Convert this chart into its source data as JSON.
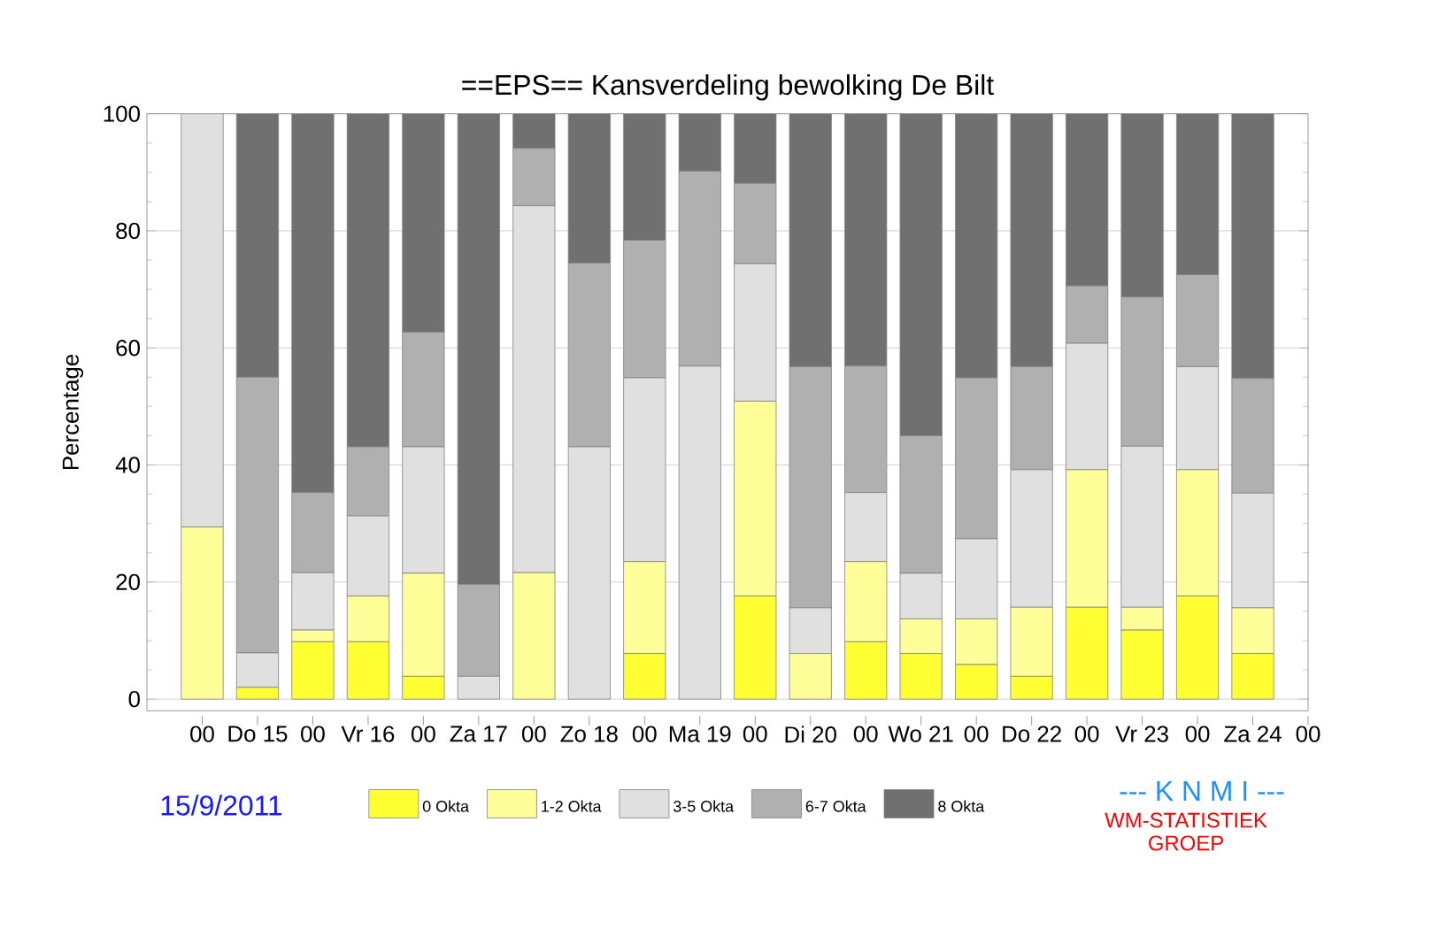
{
  "chart_data": {
    "type": "bar",
    "stacked": true,
    "title": "==EPS==   Kansverdeling bewolking De Bilt",
    "ylabel": "Percentage",
    "x": [
      "2011-09-15T00:00",
      "2011-09-15T12:00",
      "2011-09-16T00:00",
      "2011-09-16T12:00",
      "2011-09-17T00:00",
      "2011-09-17T12:00",
      "2011-09-18T00:00",
      "2011-09-18T12:00",
      "2011-09-19T00:00",
      "2011-09-19T12:00",
      "2011-09-20T00:00",
      "2011-09-20T12:00",
      "2011-09-21T00:00",
      "2011-09-21T12:00",
      "2011-09-22T00:00",
      "2011-09-22T12:00",
      "2011-09-23T00:00",
      "2011-09-23T12:00",
      "2011-09-24T00:00",
      "2011-09-24T12:00"
    ],
    "series": [
      {
        "name": "0 Okta",
        "color": "#ffff33",
        "values": [
          0,
          2.0,
          9.8,
          9.8,
          3.9,
          0,
          0,
          0,
          7.8,
          0,
          17.6,
          0,
          9.8,
          7.8,
          5.9,
          3.9,
          15.7,
          11.8,
          17.6,
          7.8
        ]
      },
      {
        "name": "1-2 Okta",
        "color": "#ffff99",
        "values": [
          29.4,
          0,
          2.0,
          7.8,
          17.6,
          0,
          21.6,
          0,
          15.7,
          0,
          33.3,
          7.8,
          13.7,
          5.9,
          7.8,
          11.8,
          23.5,
          3.9,
          21.6,
          7.8
        ]
      },
      {
        "name": "3-5 Okta",
        "color": "#e0e0e0",
        "values": [
          70.6,
          5.9,
          9.8,
          13.7,
          21.6,
          3.9,
          62.7,
          43.1,
          31.4,
          56.9,
          23.5,
          7.8,
          11.8,
          7.8,
          13.7,
          23.5,
          21.6,
          27.5,
          17.6,
          19.6
        ]
      },
      {
        "name": "6-7 Okta",
        "color": "#b0b0b0",
        "values": [
          0,
          47.1,
          13.7,
          11.8,
          19.6,
          15.7,
          9.8,
          31.4,
          23.5,
          33.3,
          13.7,
          41.2,
          21.6,
          23.5,
          27.5,
          17.6,
          9.8,
          25.5,
          15.7,
          19.6
        ]
      },
      {
        "name": "8 Okta",
        "color": "#707070",
        "values": [
          0,
          45.0,
          64.7,
          56.9,
          37.3,
          80.4,
          5.9,
          25.5,
          21.6,
          9.8,
          11.9,
          43.2,
          43.1,
          55.0,
          45.1,
          43.2,
          29.4,
          31.3,
          27.5,
          45.2
        ]
      }
    ],
    "xlim": [
      "2011-09-14T12:00",
      "2011-09-25T00:00"
    ],
    "xticks": [
      {
        "value": "2011-09-15T00:00",
        "label": "00"
      },
      {
        "value": "2011-09-15T12:00",
        "label": "Do 15"
      },
      {
        "value": "2011-09-16T00:00",
        "label": "00"
      },
      {
        "value": "2011-09-16T12:00",
        "label": "Vr 16"
      },
      {
        "value": "2011-09-17T00:00",
        "label": "00"
      },
      {
        "value": "2011-09-17T12:00",
        "label": "Za 17"
      },
      {
        "value": "2011-09-18T00:00",
        "label": "00"
      },
      {
        "value": "2011-09-18T12:00",
        "label": "Zo 18"
      },
      {
        "value": "2011-09-19T00:00",
        "label": "00"
      },
      {
        "value": "2011-09-19T12:00",
        "label": "Ma 19"
      },
      {
        "value": "2011-09-20T00:00",
        "label": "00"
      },
      {
        "value": "2011-09-20T12:00",
        "label": "Di 20"
      },
      {
        "value": "2011-09-21T00:00",
        "label": "00"
      },
      {
        "value": "2011-09-21T12:00",
        "label": "Wo 21"
      },
      {
        "value": "2011-09-22T00:00",
        "label": "00"
      },
      {
        "value": "2011-09-22T12:00",
        "label": "Do 22"
      },
      {
        "value": "2011-09-23T00:00",
        "label": "00"
      },
      {
        "value": "2011-09-23T12:00",
        "label": "Vr 23"
      },
      {
        "value": "2011-09-24T00:00",
        "label": "00"
      },
      {
        "value": "2011-09-24T12:00",
        "label": "Za 24"
      },
      {
        "value": "2011-09-25T00:00",
        "label": "00"
      }
    ],
    "ylim": [
      -2,
      100
    ],
    "yticks": [
      0,
      {
        "value": 5,
        "label": null
      },
      {
        "value": 10,
        "label": null
      },
      {
        "value": 15,
        "label": null
      },
      20,
      {
        "value": 25,
        "label": null
      },
      {
        "value": 30,
        "label": null
      },
      {
        "value": 35,
        "label": null
      },
      40,
      {
        "value": 45,
        "label": null
      },
      {
        "value": 50,
        "label": null
      },
      {
        "value": 55,
        "label": null
      },
      60,
      {
        "value": 65,
        "label": null
      },
      {
        "value": 70,
        "label": null
      },
      {
        "value": 75,
        "label": null
      },
      80,
      {
        "value": 85,
        "label": null
      },
      {
        "value": 90,
        "label": null
      },
      {
        "value": 95,
        "label": null
      },
      100
    ],
    "grid": "y",
    "legend": "bottom",
    "annotations": [
      "15/9/2011",
      "--- K N M I ---",
      "WM-STATISTIEK GROEP"
    ]
  }
}
